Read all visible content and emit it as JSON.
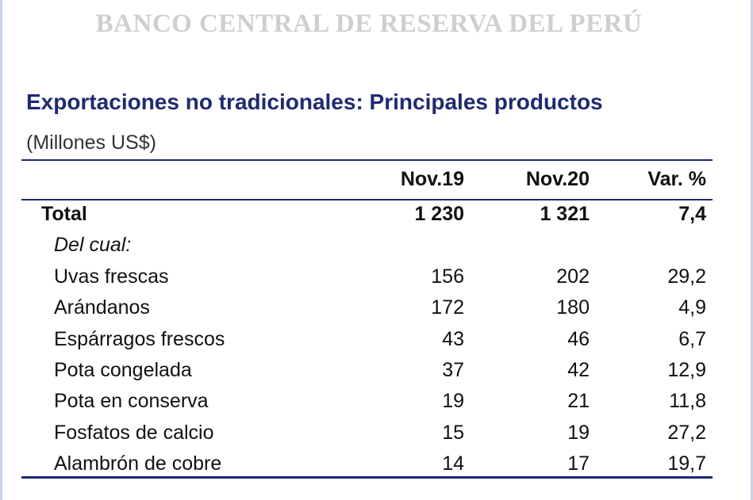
{
  "watermark": "BANCO CENTRAL DE RESERVA DEL PERÚ",
  "title": "Exportaciones no tradicionales: Principales productos",
  "subtitle": "(Millones US$)",
  "colors": {
    "title": "#1f2a72",
    "rules": "#1f2a72",
    "watermark": "#cfcfcf"
  },
  "table": {
    "headers": [
      "",
      "Nov.19",
      "Nov.20",
      "Var. %"
    ],
    "total": {
      "label": "Total",
      "nov19": "1 230",
      "nov20": "1 321",
      "var": "7,4"
    },
    "section_label": "Del cual:",
    "rows": [
      {
        "label": "Uvas frescas",
        "nov19": "156",
        "nov20": "202",
        "var": "29,2"
      },
      {
        "label": "Arándanos",
        "nov19": "172",
        "nov20": "180",
        "var": "4,9"
      },
      {
        "label": "Espárragos frescos",
        "nov19": "43",
        "nov20": "46",
        "var": "6,7"
      },
      {
        "label": "Pota congelada",
        "nov19": "37",
        "nov20": "42",
        "var": "12,9"
      },
      {
        "label": "Pota en conserva",
        "nov19": "19",
        "nov20": "21",
        "var": "11,8"
      },
      {
        "label": "Fosfatos de calcio",
        "nov19": "15",
        "nov20": "19",
        "var": "27,2"
      },
      {
        "label": "Alambrón de cobre",
        "nov19": "14",
        "nov20": "17",
        "var": "19,7"
      }
    ]
  }
}
